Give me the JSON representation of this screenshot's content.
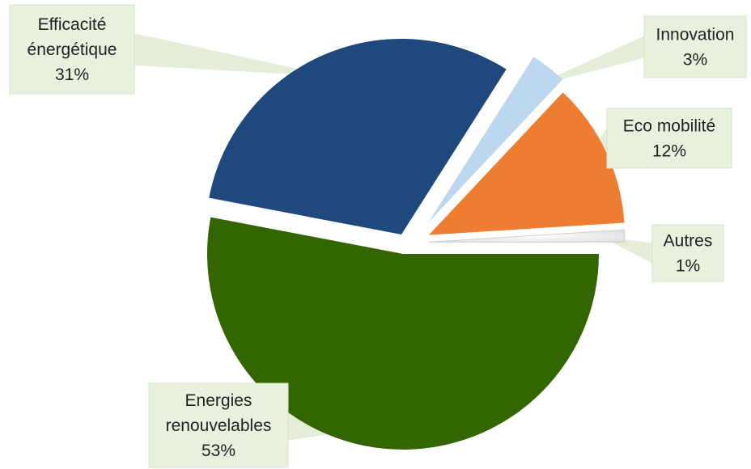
{
  "chart_data": {
    "type": "pie",
    "title": "",
    "slices": [
      {
        "name": "Energies renouvelables",
        "label_lines": [
          "Energies",
          "renouvelables"
        ],
        "value": 53,
        "value_label": "53%",
        "color": "#336600",
        "exploded": true
      },
      {
        "name": "Efficacité énergétique",
        "label_lines": [
          "Efficacité",
          "énergétique"
        ],
        "value": 31,
        "value_label": "31%",
        "color": "#1f497d",
        "exploded": false
      },
      {
        "name": "Innovation",
        "label_lines": [
          "Innovation"
        ],
        "value": 3,
        "value_label": "3%",
        "color": "#bdd7ee",
        "exploded": true
      },
      {
        "name": "Eco mobilité",
        "label_lines": [
          "Eco mobilité"
        ],
        "value": 12,
        "value_label": "12%",
        "color": "#ed7d31",
        "exploded": true
      },
      {
        "name": "Autres",
        "label_lines": [
          "Autres"
        ],
        "value": 1,
        "value_label": "1%",
        "color": "#f2f2f2",
        "exploded": true
      }
    ],
    "data_labels": "callout",
    "legend": "none"
  }
}
